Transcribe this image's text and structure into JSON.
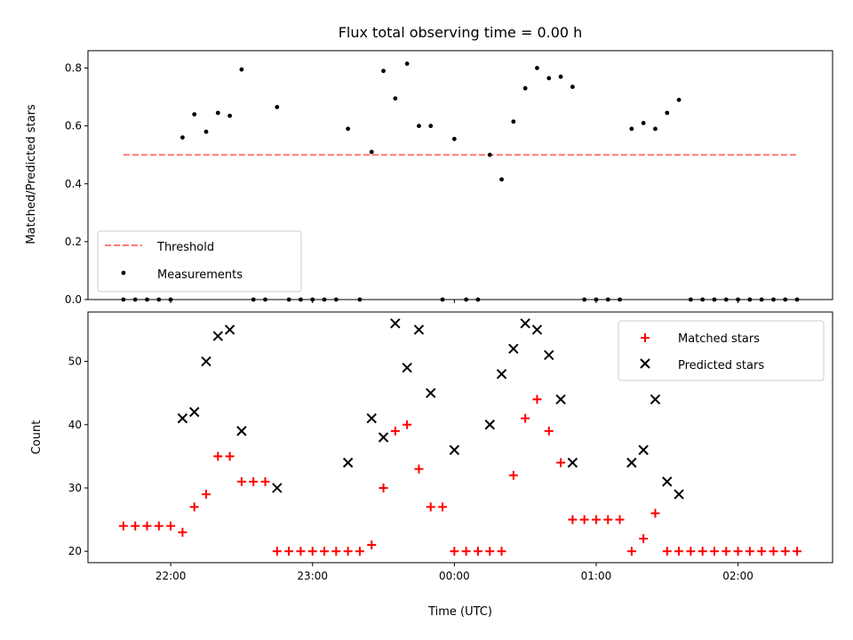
{
  "chart_data": [
    {
      "type": "scatter",
      "title": "Flux total observing time = 0.00 h",
      "xlabel": "",
      "ylabel": "Matched/Predicted stars",
      "xlim": [
        "2023-01-01T21:25",
        "2023-01-02T02:40"
      ],
      "ylim": [
        0,
        0.86
      ],
      "yticks": [
        "0.0",
        "0.2",
        "0.4",
        "0.6",
        "0.8"
      ],
      "threshold": {
        "name": "Threshold",
        "value": 0.5,
        "x_start": "2023-01-01T21:40",
        "x_end": "2023-01-02T02:25",
        "color": "#ff7777",
        "style": "dashed"
      },
      "series": [
        {
          "name": "Measurements",
          "color": "#000000",
          "points": [
            [
              "21:40",
              0
            ],
            [
              "21:45",
              0
            ],
            [
              "21:50",
              0
            ],
            [
              "21:55",
              0
            ],
            [
              "22:00",
              0
            ],
            [
              "22:05",
              0.56
            ],
            [
              "22:10",
              0.64
            ],
            [
              "22:15",
              0.58
            ],
            [
              "22:20",
              0.645
            ],
            [
              "22:25",
              0.635
            ],
            [
              "22:30",
              0.795
            ],
            [
              "22:35",
              0
            ],
            [
              "22:40",
              0
            ],
            [
              "22:45",
              0.665
            ],
            [
              "22:50",
              0
            ],
            [
              "22:55",
              0
            ],
            [
              "23:00",
              0
            ],
            [
              "23:05",
              0
            ],
            [
              "23:10",
              0
            ],
            [
              "23:15",
              0.59
            ],
            [
              "23:20",
              0
            ],
            [
              "23:25",
              0.51
            ],
            [
              "23:30",
              0.79
            ],
            [
              "23:35",
              0.695
            ],
            [
              "23:40",
              0.815
            ],
            [
              "23:45",
              0.6
            ],
            [
              "23:50",
              0.6
            ],
            [
              "23:55",
              0
            ],
            [
              "00:00",
              0.555
            ],
            [
              "00:05",
              0
            ],
            [
              "00:10",
              0
            ],
            [
              "00:15",
              0.5
            ],
            [
              "00:20",
              0.415
            ],
            [
              "00:25",
              0.615
            ],
            [
              "00:30",
              0.73
            ],
            [
              "00:35",
              0.8
            ],
            [
              "00:40",
              0.765
            ],
            [
              "00:45",
              0.77
            ],
            [
              "00:50",
              0.735
            ],
            [
              "00:55",
              0
            ],
            [
              "01:00",
              0
            ],
            [
              "01:05",
              0
            ],
            [
              "01:10",
              0
            ],
            [
              "01:15",
              0.59
            ],
            [
              "01:20",
              0.61
            ],
            [
              "01:25",
              0.59
            ],
            [
              "01:30",
              0.645
            ],
            [
              "01:35",
              0.69
            ],
            [
              "01:40",
              0
            ],
            [
              "01:45",
              0
            ],
            [
              "01:50",
              0
            ],
            [
              "01:55",
              0
            ],
            [
              "02:00",
              0
            ],
            [
              "02:05",
              0
            ],
            [
              "02:10",
              0
            ],
            [
              "02:15",
              0
            ],
            [
              "02:20",
              0
            ],
            [
              "02:25",
              0
            ]
          ]
        }
      ],
      "legend": {
        "placement": "lower left",
        "entries": [
          "Threshold",
          "Measurements"
        ]
      }
    },
    {
      "type": "scatter",
      "title": "",
      "xlabel": "Time (UTC)",
      "ylabel": "Count",
      "xlim": [
        "2023-01-01T21:25",
        "2023-01-02T02:40"
      ],
      "ylim": [
        18.2,
        57.8
      ],
      "xticks": [
        "22:00",
        "23:00",
        "00:00",
        "01:00",
        "02:00"
      ],
      "yticks": [
        "20",
        "30",
        "40",
        "50"
      ],
      "series": [
        {
          "name": "Matched stars",
          "color": "#ff0000",
          "marker": "plus",
          "points": [
            [
              "21:40",
              24
            ],
            [
              "21:45",
              24
            ],
            [
              "21:50",
              24
            ],
            [
              "21:55",
              24
            ],
            [
              "22:00",
              24
            ],
            [
              "22:05",
              23
            ],
            [
              "22:10",
              27
            ],
            [
              "22:15",
              29
            ],
            [
              "22:20",
              35
            ],
            [
              "22:25",
              35
            ],
            [
              "22:30",
              31
            ],
            [
              "22:35",
              31
            ],
            [
              "22:40",
              31
            ],
            [
              "22:45",
              20
            ],
            [
              "22:50",
              20
            ],
            [
              "22:55",
              20
            ],
            [
              "23:00",
              20
            ],
            [
              "23:05",
              20
            ],
            [
              "23:10",
              20
            ],
            [
              "23:15",
              20
            ],
            [
              "23:20",
              20
            ],
            [
              "23:25",
              21
            ],
            [
              "23:30",
              30
            ],
            [
              "23:35",
              39
            ],
            [
              "23:40",
              40
            ],
            [
              "23:45",
              33
            ],
            [
              "23:50",
              27
            ],
            [
              "23:55",
              27
            ],
            [
              "00:00",
              20
            ],
            [
              "00:05",
              20
            ],
            [
              "00:10",
              20
            ],
            [
              "00:15",
              20
            ],
            [
              "00:20",
              20
            ],
            [
              "00:25",
              32
            ],
            [
              "00:30",
              41
            ],
            [
              "00:35",
              44
            ],
            [
              "00:40",
              39
            ],
            [
              "00:45",
              34
            ],
            [
              "00:50",
              25
            ],
            [
              "00:55",
              25
            ],
            [
              "01:00",
              25
            ],
            [
              "01:05",
              25
            ],
            [
              "01:10",
              25
            ],
            [
              "01:15",
              20
            ],
            [
              "01:20",
              22
            ],
            [
              "01:25",
              26
            ],
            [
              "01:30",
              20
            ],
            [
              "01:35",
              20
            ],
            [
              "01:40",
              20
            ],
            [
              "01:45",
              20
            ],
            [
              "01:50",
              20
            ],
            [
              "01:55",
              20
            ],
            [
              "02:00",
              20
            ],
            [
              "02:05",
              20
            ],
            [
              "02:10",
              20
            ],
            [
              "02:15",
              20
            ],
            [
              "02:20",
              20
            ],
            [
              "02:25",
              20
            ]
          ]
        },
        {
          "name": "Predicted stars",
          "color": "#000000",
          "marker": "x",
          "points": [
            [
              "22:05",
              41
            ],
            [
              "22:10",
              42
            ],
            [
              "22:15",
              50
            ],
            [
              "22:20",
              54
            ],
            [
              "22:25",
              55
            ],
            [
              "22:30",
              39
            ],
            [
              "22:45",
              30
            ],
            [
              "23:15",
              34
            ],
            [
              "23:25",
              41
            ],
            [
              "23:30",
              38
            ],
            [
              "23:35",
              56
            ],
            [
              "23:40",
              49
            ],
            [
              "23:45",
              55
            ],
            [
              "23:50",
              45
            ],
            [
              "00:00",
              36
            ],
            [
              "00:15",
              40
            ],
            [
              "00:20",
              48
            ],
            [
              "00:25",
              52
            ],
            [
              "00:30",
              56
            ],
            [
              "00:35",
              55
            ],
            [
              "00:40",
              51
            ],
            [
              "00:45",
              44
            ],
            [
              "00:50",
              34
            ],
            [
              "01:15",
              34
            ],
            [
              "01:20",
              36
            ],
            [
              "01:25",
              44
            ],
            [
              "01:30",
              31
            ],
            [
              "01:35",
              29
            ]
          ]
        }
      ],
      "legend": {
        "placement": "upper right",
        "entries": [
          "Matched stars",
          "Predicted stars"
        ]
      }
    }
  ]
}
